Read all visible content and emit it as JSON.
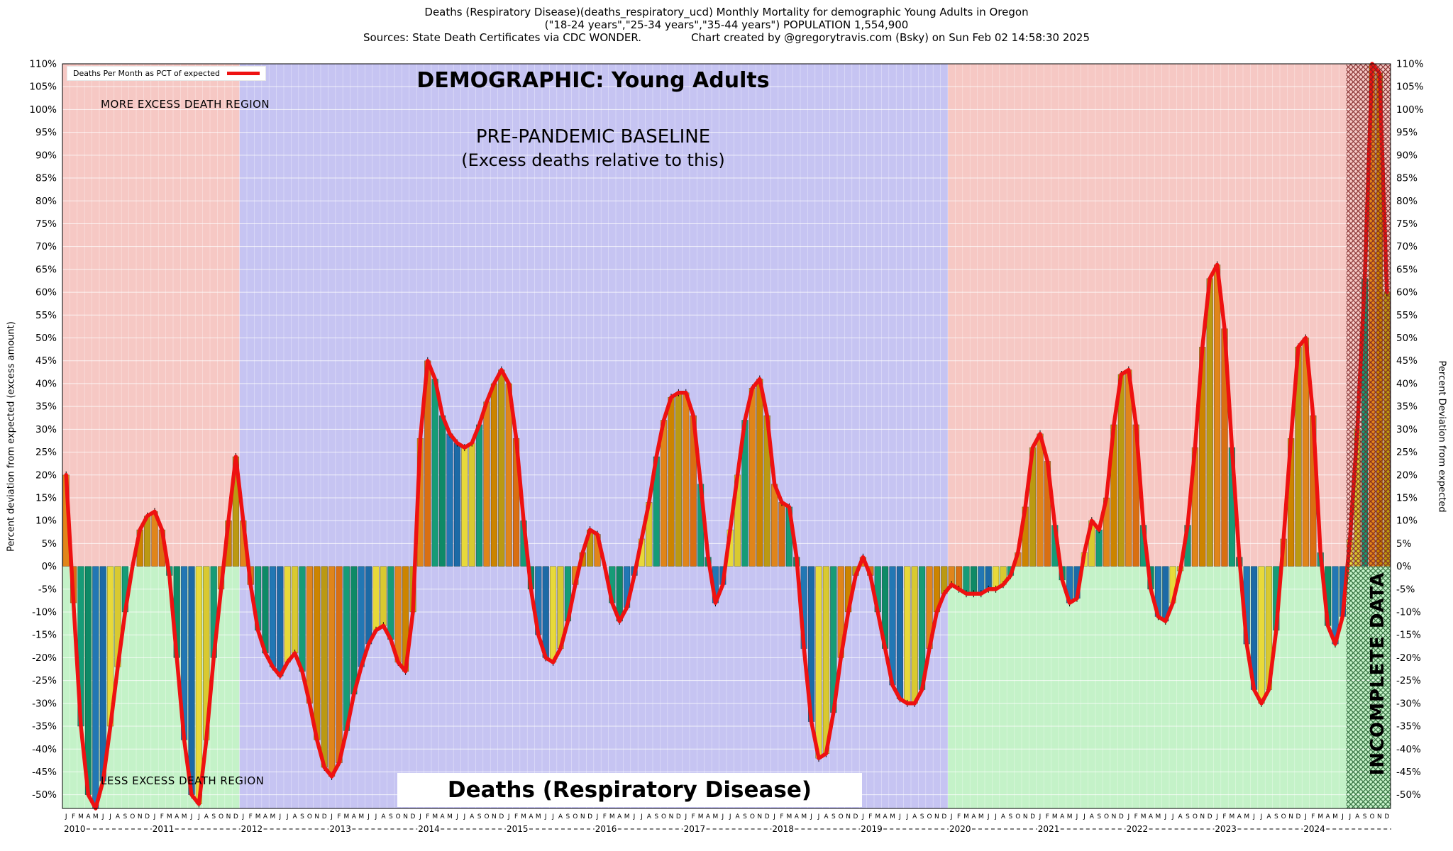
{
  "header": {
    "title_line1": "Deaths (Respiratory Disease)(deaths_respiratory_ucd) Monthly Mortality for demographic Young Adults in Oregon",
    "title_line2": "(\"18-24 years\",\"25-34 years\",\"35-44 years\") POPULATION 1,554,900",
    "title_line3_left": "Sources: State Death Certificates via CDC WONDER.",
    "title_line3_right": "Chart created by @gregorytravis.com (Bsky) on Sun Feb 02 14:58:30 2025"
  },
  "chart_data": {
    "type": "bar",
    "title": "Deaths (Respiratory Disease)",
    "demographic_heading": "DEMOGRAPHIC: Young Adults",
    "baseline_heading": "PRE-PANDEMIC BASELINE",
    "baseline_subheading": "(Excess deaths relative to this)",
    "legend_label": "Deaths Per Month as PCT of expected",
    "region_labels": {
      "more": "MORE EXCESS DEATH REGION",
      "less": "LESS EXCESS DEATH REGION",
      "incomplete": "INCOMPLETE DATA"
    },
    "axis": {
      "ylabel_left": "Percent deviation from expected (excess amount)",
      "ylabel_right": "Percent Deviation from expected",
      "ylim": [
        -53,
        110
      ],
      "ytick_min": -50,
      "ytick_max": 110,
      "ytick_step": 5,
      "unit": "%"
    },
    "years": [
      2010,
      2011,
      2012,
      2013,
      2014,
      2015,
      2016,
      2017,
      2018,
      2019,
      2020,
      2021,
      2022,
      2023,
      2024
    ],
    "month_letters": [
      "J",
      "F",
      "M",
      "A",
      "M",
      "J",
      "J",
      "A",
      "S",
      "O",
      "N",
      "D"
    ],
    "baseline_years": [
      2012,
      2019
    ],
    "incomplete_from": {
      "year": 2024,
      "month_index": 6
    },
    "series_name": "Deaths Per Month as PCT of expected (percent deviation)",
    "values_pct_deviation": {
      "2010": [
        20,
        -8,
        -35,
        -50,
        -53,
        -47,
        -35,
        -22,
        -10,
        0,
        8,
        11
      ],
      "2011": [
        12,
        8,
        -2,
        -20,
        -38,
        -50,
        -52,
        -38,
        -20,
        -5,
        10,
        24
      ],
      "2012": [
        10,
        -4,
        -14,
        -19,
        -22,
        -24,
        -21,
        -19,
        -23,
        -30,
        -38,
        -44
      ],
      "2013": [
        -46,
        -43,
        -36,
        -28,
        -22,
        -17,
        -14,
        -13,
        -16,
        -21,
        -23,
        -10
      ],
      "2014": [
        28,
        45,
        41,
        33,
        29,
        27,
        26,
        27,
        31,
        36,
        40,
        43
      ],
      "2015": [
        40,
        28,
        10,
        -5,
        -15,
        -20,
        -21,
        -18,
        -12,
        -4,
        3,
        8
      ],
      "2016": [
        7,
        0,
        -8,
        -12,
        -9,
        -2,
        6,
        14,
        24,
        32,
        37,
        38
      ],
      "2017": [
        38,
        33,
        18,
        2,
        -8,
        -4,
        8,
        20,
        32,
        39,
        41,
        33
      ],
      "2018": [
        18,
        14,
        13,
        2,
        -18,
        -34,
        -42,
        -41,
        -32,
        -20,
        -10,
        -2
      ],
      "2019": [
        2,
        -2,
        -10,
        -18,
        -26,
        -29,
        -30,
        -30,
        -27,
        -18,
        -10,
        -6
      ],
      "2020": [
        -4,
        -5,
        -6,
        -6,
        -6,
        -5,
        -5,
        -4,
        -2,
        3,
        13,
        26
      ],
      "2021": [
        29,
        23,
        9,
        -3,
        -8,
        -7,
        3,
        10,
        8,
        15,
        31,
        42
      ],
      "2022": [
        43,
        31,
        9,
        -5,
        -11,
        -12,
        -8,
        -1,
        9,
        26,
        48,
        63
      ],
      "2023": [
        66,
        52,
        26,
        2,
        -17,
        -27,
        -30,
        -27,
        -14,
        6,
        28,
        48
      ],
      "2024": [
        50,
        33,
        3,
        -13,
        -17,
        -11,
        6,
        30,
        63,
        110,
        108,
        60
      ]
    },
    "colors": {
      "line": "#EE1111",
      "bg_more_excess": "#F6C8C4",
      "bg_less_excess": "#C4F2C8",
      "bg_baseline": "#C6C4F2",
      "hatch_above": "#7A1F1F",
      "hatch_below": "#1D5C2A",
      "month_bar_colors": [
        "#E0851A",
        "#D96F12",
        "#169B77",
        "#0E8A66",
        "#2277B4",
        "#1C6AA6",
        "#E8D93A",
        "#D9C930",
        "#169B77",
        "#E0851A",
        "#CC8400",
        "#BB9912"
      ]
    }
  }
}
